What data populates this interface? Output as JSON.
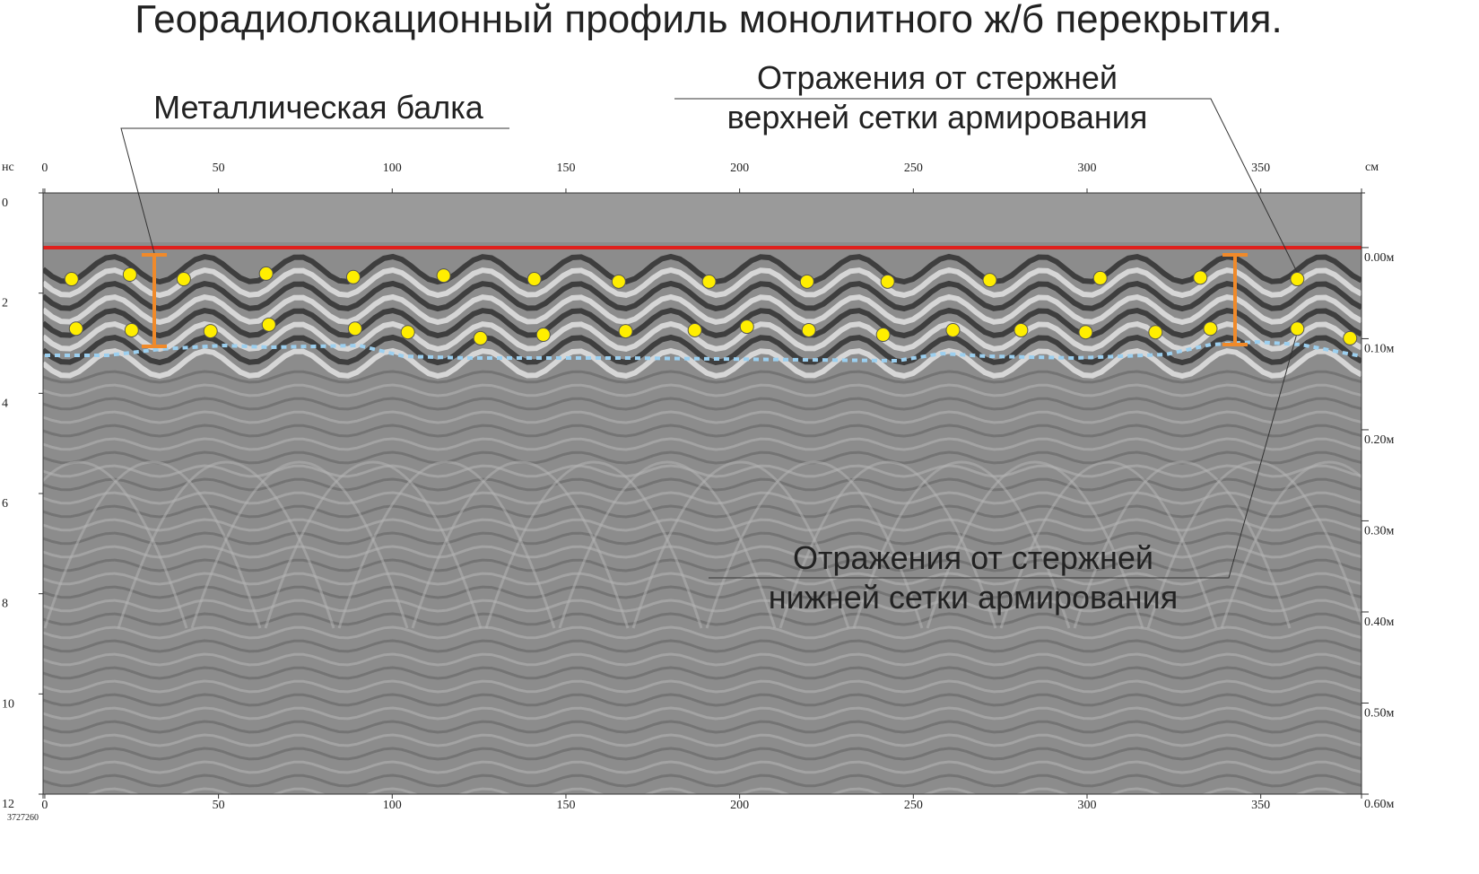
{
  "chart_data": {
    "type": "scatter",
    "title": "Георадиолокационный профиль монолитного ж/б перекрытия.",
    "annotations": [
      "Металлическая балка",
      "Отражения от стержней",
      "верхней сетки армирования",
      "Отражения от стержней",
      "нижней сетки армирования"
    ],
    "y_unit": "нс",
    "x_unit": "см",
    "file_id": "3727260",
    "xlim": [
      -0.5,
      379
    ],
    "xticks": [
      0,
      50,
      100,
      150,
      200,
      250,
      300,
      350
    ],
    "ylim": [
      0,
      12
    ],
    "yticks": [
      0,
      2,
      4,
      6,
      8,
      10,
      12
    ],
    "y2lim": [
      -0.06,
      0.6
    ],
    "y2ticks": [
      {
        "value": 0.0,
        "label": "0.00м"
      },
      {
        "value": 0.1,
        "label": "0.10м"
      },
      {
        "value": 0.2,
        "label": "0.20м"
      },
      {
        "value": 0.3,
        "label": "0.30м"
      },
      {
        "value": 0.4,
        "label": "0.40м"
      },
      {
        "value": 0.5,
        "label": "0.50м"
      },
      {
        "value": 0.6,
        "label": "0.60м"
      }
    ],
    "series": [
      {
        "color": "#ffee00",
        "x": [
          7.7,
          24.5,
          40,
          63.7,
          88.8,
          114.8,
          140.9,
          165.2,
          191.2,
          219.4,
          242.6,
          272,
          303.8,
          332.6,
          360.5
        ],
        "values": [
          1.72,
          1.63,
          1.72,
          1.61,
          1.68,
          1.65,
          1.72,
          1.77,
          1.77,
          1.77,
          1.77,
          1.74,
          1.7,
          1.69,
          1.72
        ]
      },
      {
        "color": "#ffee00",
        "x": [
          9.0,
          25.0,
          47.7,
          64.5,
          89.3,
          104.5,
          125.4,
          143.5,
          167.2,
          187.1,
          202.1,
          219.9,
          241.3,
          261.4,
          281.0,
          299.6,
          319.7,
          335.5,
          360.5,
          375.7
        ],
        "values": [
          2.71,
          2.74,
          2.76,
          2.63,
          2.71,
          2.78,
          2.9,
          2.83,
          2.76,
          2.74,
          2.67,
          2.74,
          2.83,
          2.74,
          2.74,
          2.78,
          2.78,
          2.71,
          2.71,
          2.9
        ]
      }
    ]
  }
}
